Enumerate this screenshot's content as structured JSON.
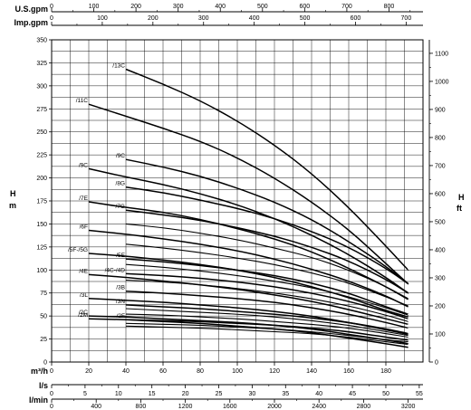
{
  "chart_data": {
    "type": "line",
    "grid": true,
    "axes": {
      "left": {
        "label_line1": "H",
        "label_line2": "m",
        "ylim": [
          0,
          350
        ],
        "ticks": [
          "0",
          "25",
          "50",
          "75",
          "100",
          "125",
          "150",
          "175",
          "200",
          "225",
          "250",
          "275",
          "300",
          "325",
          "350"
        ]
      },
      "right": {
        "label_line1": "H",
        "label_line2": "ft",
        "ylim": [
          0,
          1148
        ],
        "ticks": [
          "0",
          "100",
          "200",
          "300",
          "400",
          "500",
          "600",
          "700",
          "800",
          "900",
          "1000",
          "1100"
        ]
      },
      "bottom": [
        {
          "label": "m³/h",
          "max": 200,
          "ticks": [
            "0",
            "20",
            "40",
            "60",
            "80",
            "100",
            "120",
            "140",
            "160",
            "180"
          ],
          "values": [
            0,
            20,
            40,
            60,
            80,
            100,
            120,
            140,
            160,
            180
          ]
        },
        {
          "label": "l/s",
          "max": 55.56,
          "ticks": [
            "0",
            "5",
            "10",
            "15",
            "20",
            "25",
            "30",
            "35",
            "40",
            "45",
            "50",
            "55"
          ],
          "values": [
            0,
            5,
            10,
            15,
            20,
            25,
            30,
            35,
            40,
            45,
            50,
            55
          ]
        },
        {
          "label": "l/min",
          "max": 3333.3,
          "ticks": [
            "0",
            "400",
            "800",
            "1200",
            "1600",
            "2000",
            "2400",
            "2800",
            "3200"
          ],
          "values": [
            0,
            400,
            800,
            1200,
            1600,
            2000,
            2400,
            2800,
            3200
          ]
        }
      ],
      "top": [
        {
          "label": "U.S.gpm",
          "max": 880.6,
          "ticks": [
            "0",
            "100",
            "200",
            "300",
            "400",
            "500",
            "600",
            "700",
            "800"
          ],
          "values": [
            0,
            100,
            200,
            300,
            400,
            500,
            600,
            700,
            800
          ]
        },
        {
          "label": "Imp.gpm",
          "max": 733.3,
          "ticks": [
            "0",
            "100",
            "200",
            "300",
            "400",
            "500",
            "600",
            "700"
          ],
          "values": [
            0,
            100,
            200,
            300,
            400,
            500,
            600,
            700
          ]
        }
      ]
    },
    "x_range": [
      0,
      200
    ],
    "series": [
      {
        "name": "/13C",
        "x": [
          40,
          60,
          80,
          100,
          120,
          140,
          160,
          180,
          192
        ],
        "y": [
          318,
          302,
          284,
          262,
          236,
          205,
          168,
          126,
          100
        ]
      },
      {
        "name": "/11C",
        "x": [
          20,
          40,
          60,
          80,
          100,
          120,
          140,
          160,
          180,
          192
        ],
        "y": [
          280,
          267,
          254,
          240,
          222,
          200,
          174,
          144,
          107,
          85
        ]
      },
      {
        "name": "/9C",
        "x": [
          40,
          60,
          80,
          100,
          120,
          140,
          160,
          180,
          192
        ],
        "y": [
          220,
          212,
          202,
          189,
          174,
          155,
          131,
          104,
          85
        ]
      },
      {
        "name": "/9C",
        "x": [
          20,
          40,
          60,
          80,
          100,
          120,
          140,
          160,
          180,
          192
        ],
        "y": [
          210,
          201,
          193,
          183,
          171,
          156,
          138,
          117,
          92,
          75
        ]
      },
      {
        "name": "/8G",
        "x": [
          40,
          60,
          80,
          100,
          120,
          140,
          160,
          180,
          192
        ],
        "y": [
          190,
          184,
          176,
          167,
          156,
          142,
          125,
          102,
          85
        ]
      },
      {
        "name": "/7E",
        "x": [
          20,
          40,
          60,
          80,
          100,
          120,
          140,
          160,
          180,
          192
        ],
        "y": [
          174,
          168,
          163,
          155,
          145,
          134,
          120,
          102,
          82,
          68
        ]
      },
      {
        "name": "/7G",
        "x": [
          40,
          60,
          80,
          100,
          120,
          140,
          160,
          180,
          192
        ],
        "y": [
          165,
          160,
          154,
          146,
          137,
          125,
          110,
          90,
          75
        ]
      },
      {
        "name": "/6F",
        "x": [
          20,
          40,
          60,
          80,
          100,
          120,
          140,
          160,
          180,
          192
        ],
        "y": [
          143,
          139,
          134,
          128,
          121,
          112,
          101,
          88,
          72,
          60
        ]
      },
      {
        "name": "/5E",
        "x": [
          40,
          60,
          80,
          100,
          120,
          140,
          160,
          180,
          192
        ],
        "y": [
          112,
          109,
          105,
          100,
          94,
          86,
          75,
          60,
          52
        ]
      },
      {
        "name": "/5F-/5G",
        "x": [
          20,
          40,
          60,
          80,
          100,
          120,
          140,
          160,
          180,
          192
        ],
        "y": [
          118,
          115,
          111,
          106,
          100,
          92,
          82,
          70,
          56,
          49
        ]
      },
      {
        "name": "/4C-/4D",
        "x": [
          40,
          60,
          80,
          100,
          120,
          140,
          160,
          180,
          192
        ],
        "y": [
          96,
          94,
          91,
          87,
          82,
          75,
          66,
          55,
          47
        ]
      },
      {
        "name": "/4E",
        "x": [
          20,
          40,
          60,
          80,
          100,
          120,
          140,
          160,
          180,
          192
        ],
        "y": [
          95,
          92,
          88,
          84,
          79,
          73,
          66,
          57,
          47,
          41
        ]
      },
      {
        "name": "/3B",
        "x": [
          40,
          60,
          80,
          100,
          120,
          140,
          160,
          180,
          192
        ],
        "y": [
          77,
          75,
          72,
          69,
          65,
          59,
          52,
          43,
          37
        ]
      },
      {
        "name": "/3L",
        "x": [
          20,
          40,
          60,
          80,
          100,
          120,
          140,
          160,
          180,
          192
        ],
        "y": [
          69,
          67,
          65,
          62,
          59,
          55,
          50,
          43,
          35,
          30
        ]
      },
      {
        "name": "/3N",
        "x": [
          40,
          60,
          80,
          100,
          120,
          140,
          160,
          180,
          192
        ],
        "y": [
          62,
          60,
          58,
          55,
          52,
          48,
          43,
          36,
          31
        ]
      },
      {
        "name": "/2C",
        "x": [
          20,
          40,
          60,
          80,
          100,
          120,
          140,
          160,
          180,
          192
        ],
        "y": [
          50,
          49,
          47,
          45,
          43,
          40,
          36,
          30,
          24,
          20
        ]
      },
      {
        "name": "/2F",
        "x": [
          40,
          60,
          80,
          100,
          120,
          140,
          160,
          180,
          192
        ],
        "y": [
          46,
          45,
          44,
          42,
          40,
          37,
          33,
          27,
          24
        ]
      },
      {
        "name": "/2M",
        "x": [
          20,
          40,
          60,
          80,
          100,
          120,
          140,
          160,
          180,
          192
        ],
        "y": [
          47,
          46,
          44,
          42,
          39,
          36,
          32,
          26,
          20,
          16
        ]
      },
      {
        "name": "",
        "x": [
          40,
          60,
          80,
          100,
          120,
          140,
          160,
          180,
          192
        ],
        "y": [
          52,
          51,
          49,
          47,
          44,
          41,
          37,
          31,
          27
        ]
      },
      {
        "name": "",
        "x": [
          40,
          60,
          80,
          100,
          120,
          140,
          160,
          180,
          192
        ],
        "y": [
          89,
          87,
          84,
          80,
          75,
          69,
          61,
          51,
          44
        ]
      },
      {
        "name": "",
        "x": [
          40,
          60,
          80,
          100,
          120,
          140,
          160,
          180,
          192
        ],
        "y": [
          106,
          103,
          99,
          94,
          88,
          81,
          71,
          59,
          51
        ]
      },
      {
        "name": "",
        "x": [
          40,
          60,
          80,
          100,
          120,
          140,
          160,
          180,
          192
        ],
        "y": [
          128,
          124,
          119,
          113,
          106,
          97,
          86,
          71,
          61
        ]
      },
      {
        "name": "",
        "x": [
          40,
          60,
          80,
          100,
          120,
          140,
          160,
          180,
          192
        ],
        "y": [
          150,
          146,
          140,
          133,
          124,
          114,
          100,
          82,
          69
        ]
      },
      {
        "name": "",
        "x": [
          40,
          60,
          80,
          100,
          120,
          140,
          160,
          180,
          192
        ],
        "y": [
          58,
          56,
          54,
          52,
          49,
          45,
          40,
          33,
          29
        ]
      },
      {
        "name": "",
        "x": [
          40,
          60,
          80,
          100,
          120,
          140,
          160,
          180,
          192
        ],
        "y": [
          42,
          41,
          40,
          38,
          36,
          33,
          29,
          24,
          22
        ]
      },
      {
        "name": "",
        "x": [
          40,
          60,
          80,
          100,
          120,
          140,
          160,
          180,
          192
        ],
        "y": [
          39,
          38,
          37,
          35,
          33,
          31,
          27,
          22,
          19
        ]
      }
    ]
  }
}
